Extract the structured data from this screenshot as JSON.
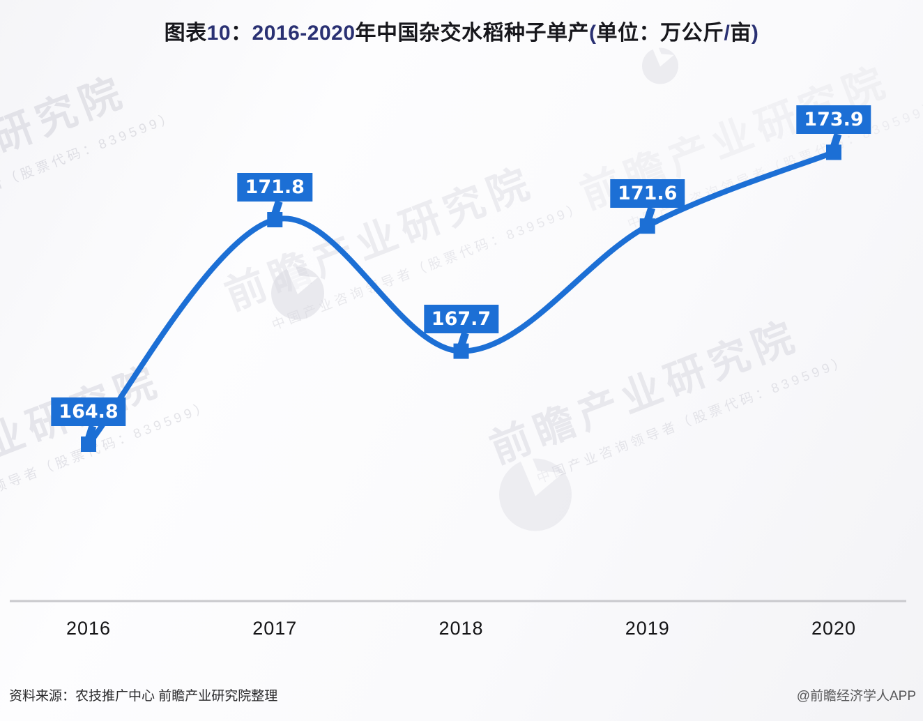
{
  "title": {
    "full": "图表10：2016-2020年中国杂交水稻种子单产(单位：万公斤/亩)",
    "segments": [
      {
        "t": "图表",
        "k": "cn"
      },
      {
        "t": "10",
        "k": "num"
      },
      {
        "t": "：",
        "k": "cn"
      },
      {
        "t": "2016-2020",
        "k": "num"
      },
      {
        "t": "年中国杂交水稻种子单产",
        "k": "cn"
      },
      {
        "t": "(",
        "k": "num"
      },
      {
        "t": "单位：万公斤",
        "k": "cn"
      },
      {
        "t": "/",
        "k": "num"
      },
      {
        "t": "亩",
        "k": "cn"
      },
      {
        "t": ")",
        "k": "num"
      }
    ]
  },
  "chart_data": {
    "type": "line",
    "title": "图表10：2016-2020年中国杂交水稻种子单产(单位：万公斤/亩)",
    "categories": [
      "2016",
      "2017",
      "2018",
      "2019",
      "2020"
    ],
    "values": [
      164.8,
      171.8,
      167.7,
      171.6,
      173.9
    ],
    "series_name": "中国杂交水稻种子单产",
    "unit": "万公斤/亩",
    "xlabel": "",
    "ylabel": "万公斤/亩",
    "ylim": [
      162,
      176
    ],
    "grid": false,
    "legend": "none",
    "marker": "square",
    "line_color": "#1c6fd5",
    "label_bg": "#1c6fd5",
    "label_text_color": "#ffffff"
  },
  "watermark": {
    "main": "前瞻产业研究院",
    "sub": "中国产业咨询领导者（股票代码：839599）",
    "logo_name": "qianzhan-bird-logo"
  },
  "footer": {
    "source": "资料来源：农技推广中心 前瞻产业研究院整理",
    "credit": "@前瞻经济学人APP"
  },
  "colors": {
    "accent": "#1c6fd5",
    "title_cn": "#17171c",
    "title_num": "#2a3173",
    "axis_line": "#c9c9cd",
    "watermark": "#76768c"
  }
}
